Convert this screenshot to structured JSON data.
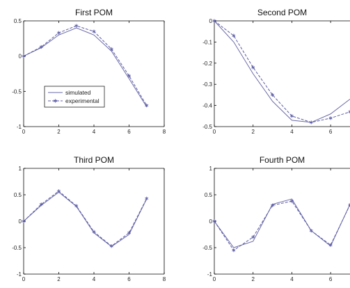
{
  "chart_data": [
    {
      "type": "line",
      "title": "First POM",
      "xlim": [
        0,
        8
      ],
      "ylim": [
        -1,
        0.5
      ],
      "xticks": [
        0,
        2,
        4,
        6,
        8
      ],
      "yticks": [
        -1,
        -0.5,
        0,
        0.5
      ],
      "x": [
        0,
        1,
        2,
        3,
        4,
        5,
        6,
        7
      ],
      "series": [
        {
          "name": "simulated",
          "style": "solid",
          "marker": "none",
          "values": [
            0.0,
            0.12,
            0.3,
            0.4,
            0.3,
            0.07,
            -0.32,
            -0.72
          ]
        },
        {
          "name": "experimental",
          "style": "dashed",
          "marker": "star",
          "values": [
            0.0,
            0.13,
            0.33,
            0.43,
            0.35,
            0.1,
            -0.28,
            -0.7
          ]
        }
      ],
      "legend": {
        "position": "lower-left"
      },
      "grid": false
    },
    {
      "type": "line",
      "title": "Second POM",
      "xlim": [
        0,
        7
      ],
      "ylim": [
        -0.5,
        0
      ],
      "xticks": [
        0,
        2,
        4,
        6
      ],
      "yticks": [
        -0.5,
        -0.4,
        -0.3,
        -0.2,
        -0.1,
        0
      ],
      "x": [
        0,
        1,
        2,
        3,
        4,
        5,
        6,
        7
      ],
      "series": [
        {
          "name": "simulated",
          "style": "solid",
          "marker": "none",
          "values": [
            0.0,
            -0.1,
            -0.25,
            -0.38,
            -0.47,
            -0.48,
            -0.44,
            -0.37
          ]
        },
        {
          "name": "experimental",
          "style": "dashed",
          "marker": "star",
          "values": [
            0.0,
            -0.07,
            -0.22,
            -0.35,
            -0.45,
            -0.48,
            -0.46,
            -0.43
          ]
        }
      ],
      "grid": false
    },
    {
      "type": "line",
      "title": "Third POM",
      "xlim": [
        0,
        8
      ],
      "ylim": [
        -1,
        1
      ],
      "xticks": [
        0,
        2,
        4,
        6,
        8
      ],
      "yticks": [
        -1,
        -0.5,
        0,
        0.5,
        1
      ],
      "x": [
        0,
        1,
        2,
        3,
        4,
        5,
        6,
        7
      ],
      "series": [
        {
          "name": "simulated",
          "style": "solid",
          "marker": "none",
          "values": [
            0.0,
            0.3,
            0.55,
            0.28,
            -0.22,
            -0.48,
            -0.25,
            0.42
          ]
        },
        {
          "name": "experimental",
          "style": "dashed",
          "marker": "star",
          "values": [
            0.0,
            0.32,
            0.57,
            0.29,
            -0.2,
            -0.47,
            -0.22,
            0.43
          ]
        }
      ],
      "grid": false
    },
    {
      "type": "line",
      "title": "Fourth POM",
      "xlim": [
        0,
        7
      ],
      "ylim": [
        -1,
        1
      ],
      "xticks": [
        0,
        2,
        4,
        6
      ],
      "yticks": [
        -1,
        -0.5,
        0,
        0.5,
        1
      ],
      "x": [
        0,
        1,
        2,
        3,
        4,
        5,
        6,
        7
      ],
      "series": [
        {
          "name": "simulated",
          "style": "solid",
          "marker": "none",
          "values": [
            0.0,
            -0.5,
            -0.38,
            0.32,
            0.42,
            -0.18,
            -0.47,
            0.32
          ]
        },
        {
          "name": "experimental",
          "style": "dashed",
          "marker": "star",
          "values": [
            0.0,
            -0.55,
            -0.3,
            0.3,
            0.38,
            -0.18,
            -0.45,
            0.31
          ]
        }
      ],
      "grid": false
    }
  ],
  "colors": {
    "simulated": "#6a6aa8",
    "experimental": "#5c5ca6",
    "axes": "#000000",
    "background": "#ffffff"
  }
}
